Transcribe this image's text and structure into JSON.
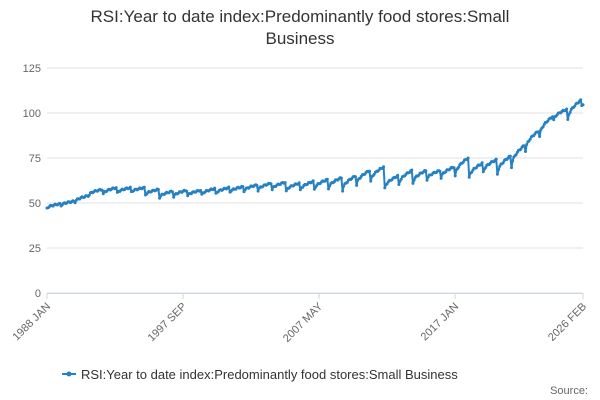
{
  "chart_data": {
    "type": "line",
    "title_line1": "RSI:Year to date index:Predominantly food stores:Small",
    "title_line2": "Business",
    "xlabel": "",
    "ylabel": "",
    "ylim": [
      0,
      125
    ],
    "y_ticks": [
      0,
      25,
      50,
      75,
      100,
      125
    ],
    "x_range": [
      "1988-01",
      "2026-02"
    ],
    "x_ticks": [
      "1988 JAN",
      "1997 SEP",
      "2007 MAY",
      "2017 JAN",
      "2026 FEB"
    ],
    "grid": true,
    "legend_position": "bottom",
    "source_label": "Source:",
    "colors": {
      "line": "#2681c2",
      "grid": "#e0e0e0",
      "axis": "#ccd6eb"
    },
    "series": [
      {
        "name": "RSI:Year to date index:Predominantly food stores:Small Business",
        "year_points": [
          {
            "year": 1988,
            "start": 47.0,
            "end": 49.5
          },
          {
            "year": 1989,
            "start": 48.5,
            "end": 51.0
          },
          {
            "year": 1990,
            "start": 50.5,
            "end": 54.0
          },
          {
            "year": 1991,
            "start": 54.5,
            "end": 57.5
          },
          {
            "year": 1992,
            "start": 55.0,
            "end": 58.5
          },
          {
            "year": 1993,
            "start": 55.5,
            "end": 58.5
          },
          {
            "year": 1994,
            "start": 56.0,
            "end": 58.5
          },
          {
            "year": 1995,
            "start": 54.5,
            "end": 57.5
          },
          {
            "year": 1996,
            "start": 53.0,
            "end": 56.5
          },
          {
            "year": 1997,
            "start": 53.5,
            "end": 57.0
          },
          {
            "year": 1998,
            "start": 54.0,
            "end": 57.0
          },
          {
            "year": 1999,
            "start": 54.5,
            "end": 58.0
          },
          {
            "year": 2000,
            "start": 55.0,
            "end": 58.5
          },
          {
            "year": 2001,
            "start": 56.0,
            "end": 59.0
          },
          {
            "year": 2002,
            "start": 56.5,
            "end": 60.0
          },
          {
            "year": 2003,
            "start": 57.0,
            "end": 61.0
          },
          {
            "year": 2004,
            "start": 57.5,
            "end": 61.5
          },
          {
            "year": 2005,
            "start": 56.5,
            "end": 61.0
          },
          {
            "year": 2006,
            "start": 57.0,
            "end": 62.0
          },
          {
            "year": 2007,
            "start": 57.5,
            "end": 63.0
          },
          {
            "year": 2008,
            "start": 58.0,
            "end": 64.0
          },
          {
            "year": 2009,
            "start": 57.0,
            "end": 65.0
          },
          {
            "year": 2010,
            "start": 60.0,
            "end": 68.0
          },
          {
            "year": 2011,
            "start": 62.0,
            "end": 70.0
          },
          {
            "year": 2012,
            "start": 58.0,
            "end": 65.0
          },
          {
            "year": 2013,
            "start": 60.0,
            "end": 68.0
          },
          {
            "year": 2014,
            "start": 61.0,
            "end": 68.0
          },
          {
            "year": 2015,
            "start": 63.0,
            "end": 68.0
          },
          {
            "year": 2016,
            "start": 64.0,
            "end": 70.0
          },
          {
            "year": 2017,
            "start": 65.0,
            "end": 75.0
          },
          {
            "year": 2018,
            "start": 64.0,
            "end": 72.0
          },
          {
            "year": 2019,
            "start": 67.0,
            "end": 74.0
          },
          {
            "year": 2020,
            "start": 66.0,
            "end": 76.0
          },
          {
            "year": 2021,
            "start": 70.0,
            "end": 82.0
          },
          {
            "year": 2022,
            "start": 79.0,
            "end": 90.0
          },
          {
            "year": 2023,
            "start": 87.0,
            "end": 98.0
          },
          {
            "year": 2024,
            "start": 96.0,
            "end": 102.0
          },
          {
            "year": 2025,
            "start": 96.0,
            "end": 107.0
          },
          {
            "year": 2026,
            "start": 104.0,
            "end": 105.0
          }
        ]
      }
    ]
  }
}
